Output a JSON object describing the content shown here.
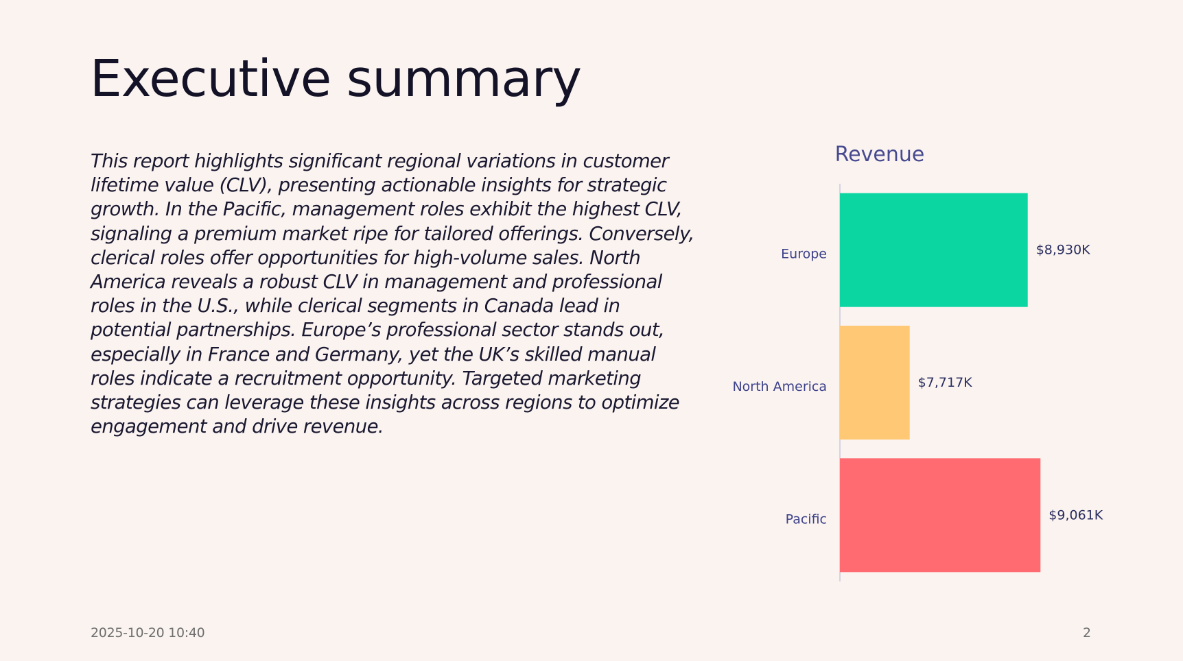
{
  "slide": {
    "title": "Executive summary",
    "summary": "This report highlights significant regional variations in customer lifetime value (CLV), presenting actionable insights for strategic growth. In the Pacific, management roles exhibit the highest CLV, signaling a premium market ripe for tailored offerings. Conversely, clerical roles offer opportunities for high-volume sales. North America reveals a robust CLV in management and professional roles in the U.S., while clerical segments in Canada lead in potential partnerships. Europe’s professional sector stands out, especially in France and Germany, yet the UK’s skilled manual roles indicate a recruitment opportunity. Targeted marketing strategies can leverage these insights across regions to optimize engagement and drive revenue.",
    "timestamp": "2025-10-20 10:40",
    "page_number": "2"
  },
  "chart_data": {
    "type": "bar",
    "orientation": "horizontal",
    "title": "Revenue",
    "xlabel": "",
    "ylabel": "",
    "categories": [
      "Europe",
      "North America",
      "Pacific"
    ],
    "values": [
      8930,
      7717,
      9061
    ],
    "value_labels": [
      "$8,930K",
      "$7,717K",
      "$9,061K"
    ],
    "unit": "K",
    "colors": [
      "#0bd6a1",
      "#ffc875",
      "#ff6b70"
    ],
    "axis_color": "#c9c9de",
    "xlim": [
      7000,
      9200
    ],
    "grid": false,
    "legend": "none"
  }
}
